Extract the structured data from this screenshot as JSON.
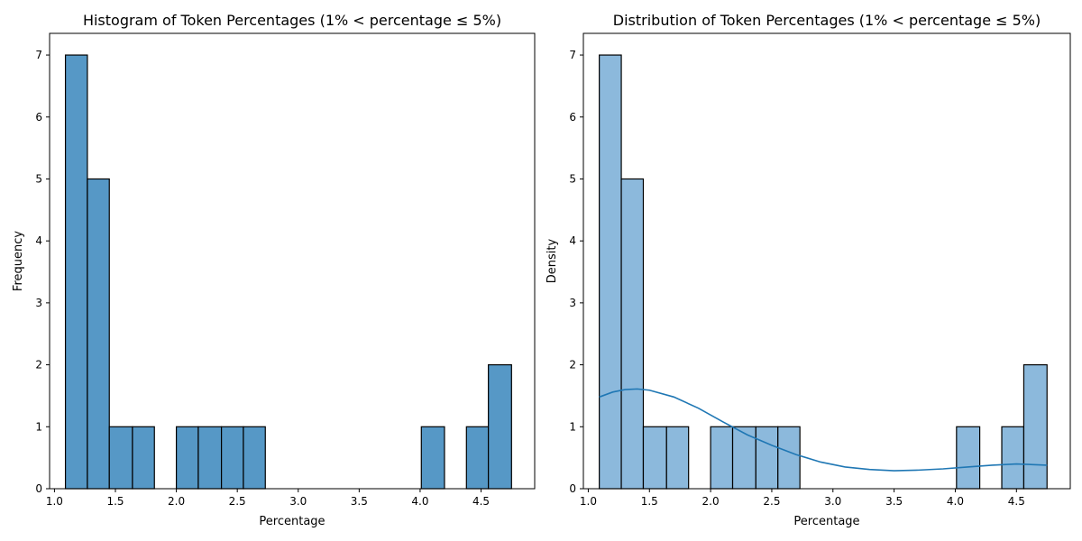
{
  "chart_data": [
    {
      "type": "bar",
      "title": "Histogram of Token Percentages (1% < percentage ≤ 5%)",
      "xlabel": "Percentage",
      "ylabel": "Frequency",
      "xlim": [
        0.96,
        4.94
      ],
      "ylim": [
        0,
        7.35
      ],
      "xticks": [
        "1.0",
        "1.5",
        "2.0",
        "2.5",
        "3.0",
        "3.5",
        "4.0",
        "4.5"
      ],
      "yticks": [
        "0",
        "1",
        "2",
        "3",
        "4",
        "5",
        "6",
        "7"
      ],
      "bins": [
        {
          "x0": 1.09,
          "x1": 1.27,
          "count": 7
        },
        {
          "x0": 1.27,
          "x1": 1.45,
          "count": 5
        },
        {
          "x0": 1.45,
          "x1": 1.64,
          "count": 1
        },
        {
          "x0": 1.64,
          "x1": 1.82,
          "count": 1
        },
        {
          "x0": 1.82,
          "x1": 2.0,
          "count": 0
        },
        {
          "x0": 2.0,
          "x1": 2.18,
          "count": 1
        },
        {
          "x0": 2.18,
          "x1": 2.37,
          "count": 1
        },
        {
          "x0": 2.37,
          "x1": 2.55,
          "count": 1
        },
        {
          "x0": 2.55,
          "x1": 2.73,
          "count": 1
        },
        {
          "x0": 2.73,
          "x1": 2.92,
          "count": 0
        },
        {
          "x0": 2.92,
          "x1": 3.1,
          "count": 0
        },
        {
          "x0": 3.1,
          "x1": 3.28,
          "count": 0
        },
        {
          "x0": 3.28,
          "x1": 3.46,
          "count": 0
        },
        {
          "x0": 3.46,
          "x1": 3.65,
          "count": 0
        },
        {
          "x0": 3.65,
          "x1": 3.83,
          "count": 0
        },
        {
          "x0": 3.83,
          "x1": 4.01,
          "count": 0
        },
        {
          "x0": 4.01,
          "x1": 4.2,
          "count": 1
        },
        {
          "x0": 4.2,
          "x1": 4.38,
          "count": 0
        },
        {
          "x0": 4.38,
          "x1": 4.56,
          "count": 1
        },
        {
          "x0": 4.56,
          "x1": 4.75,
          "count": 2
        }
      ],
      "bar_color": "#5698c6",
      "edge_color": "#000000"
    },
    {
      "type": "bar",
      "title": "Distribution of Token Percentages (1% < percentage ≤ 5%)",
      "xlabel": "Percentage",
      "ylabel": "Density",
      "xlim": [
        0.96,
        4.94
      ],
      "ylim": [
        0,
        7.35
      ],
      "xticks": [
        "1.0",
        "1.5",
        "2.0",
        "2.5",
        "3.0",
        "3.5",
        "4.0",
        "4.5"
      ],
      "yticks": [
        "0",
        "1",
        "2",
        "3",
        "4",
        "5",
        "6",
        "7"
      ],
      "bins": [
        {
          "x0": 1.09,
          "x1": 1.27,
          "count": 7
        },
        {
          "x0": 1.27,
          "x1": 1.45,
          "count": 5
        },
        {
          "x0": 1.45,
          "x1": 1.64,
          "count": 1
        },
        {
          "x0": 1.64,
          "x1": 1.82,
          "count": 1
        },
        {
          "x0": 1.82,
          "x1": 2.0,
          "count": 0
        },
        {
          "x0": 2.0,
          "x1": 2.18,
          "count": 1
        },
        {
          "x0": 2.18,
          "x1": 2.37,
          "count": 1
        },
        {
          "x0": 2.37,
          "x1": 2.55,
          "count": 1
        },
        {
          "x0": 2.55,
          "x1": 2.73,
          "count": 1
        },
        {
          "x0": 2.73,
          "x1": 2.92,
          "count": 0
        },
        {
          "x0": 2.92,
          "x1": 3.1,
          "count": 0
        },
        {
          "x0": 3.1,
          "x1": 3.28,
          "count": 0
        },
        {
          "x0": 3.28,
          "x1": 3.46,
          "count": 0
        },
        {
          "x0": 3.46,
          "x1": 3.65,
          "count": 0
        },
        {
          "x0": 3.65,
          "x1": 3.83,
          "count": 0
        },
        {
          "x0": 3.83,
          "x1": 4.01,
          "count": 0
        },
        {
          "x0": 4.01,
          "x1": 4.2,
          "count": 1
        },
        {
          "x0": 4.2,
          "x1": 4.38,
          "count": 0
        },
        {
          "x0": 4.38,
          "x1": 4.56,
          "count": 1
        },
        {
          "x0": 4.56,
          "x1": 4.75,
          "count": 2
        }
      ],
      "kde_curve": {
        "x": [
          1.09,
          1.2,
          1.3,
          1.4,
          1.5,
          1.7,
          1.9,
          2.1,
          2.3,
          2.5,
          2.7,
          2.9,
          3.1,
          3.3,
          3.5,
          3.7,
          3.9,
          4.1,
          4.3,
          4.5,
          4.75
        ],
        "y": [
          1.48,
          1.56,
          1.6,
          1.61,
          1.59,
          1.48,
          1.3,
          1.08,
          0.87,
          0.7,
          0.55,
          0.43,
          0.35,
          0.31,
          0.29,
          0.3,
          0.32,
          0.35,
          0.38,
          0.4,
          0.38
        ]
      },
      "bar_color": "#8cb9dc",
      "edge_color": "#000000",
      "line_color": "#1f77b4"
    }
  ]
}
